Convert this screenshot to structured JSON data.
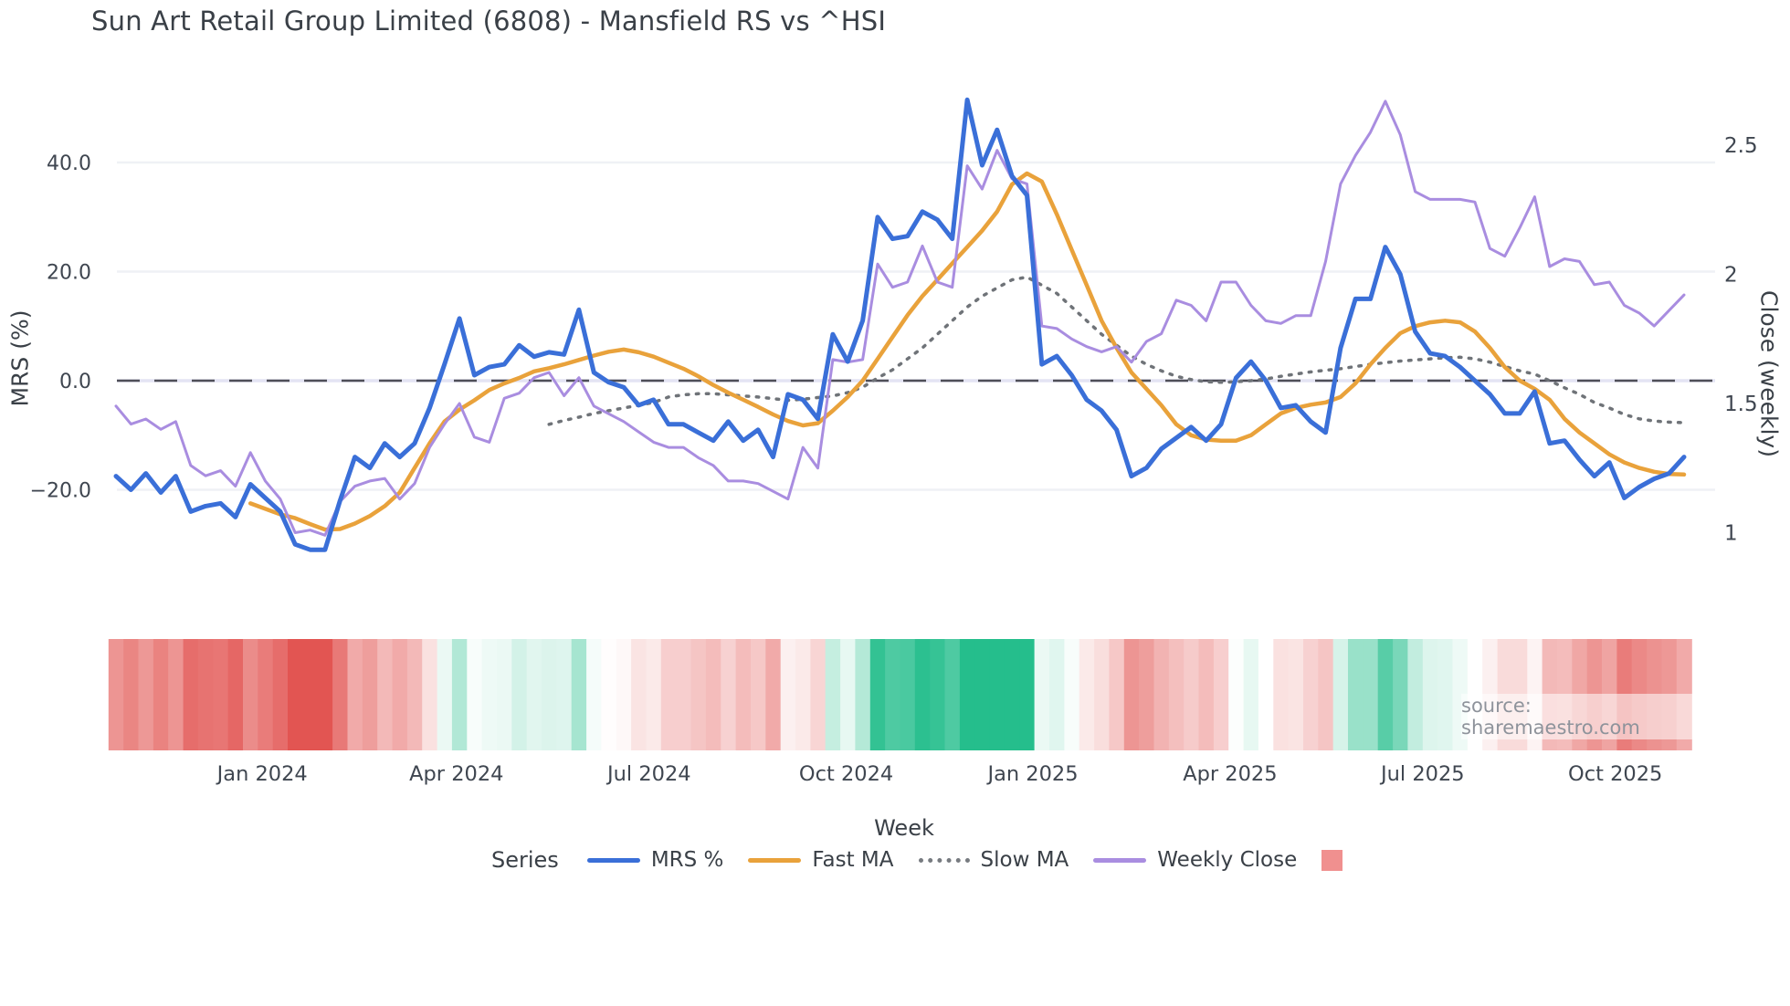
{
  "title": "Sun Art Retail Group Limited (6808) - Mansfield RS vs ^HSI",
  "source_text": "source: sharemaestro.com",
  "axes": {
    "left": {
      "label": "MRS (%)",
      "ticks": [
        {
          "v": 40,
          "label": "40.0"
        },
        {
          "v": 20,
          "label": "20.0"
        },
        {
          "v": 0,
          "label": "0.0"
        },
        {
          "v": -20,
          "label": "−20.0"
        }
      ]
    },
    "right": {
      "label": "Close (weekly)",
      "ticks": [
        {
          "v": 2.5,
          "label": "2.5"
        },
        {
          "v": 2,
          "label": "2"
        },
        {
          "v": 1.5,
          "label": "1.5"
        },
        {
          "v": 1,
          "label": "1"
        }
      ]
    },
    "x": {
      "label": "Week",
      "month_ticks": [
        {
          "label": "Jan 2024",
          "week": 9.8
        },
        {
          "label": "Apr 2024",
          "week": 22.8
        },
        {
          "label": "Jul 2024",
          "week": 35.7
        },
        {
          "label": "Oct 2024",
          "week": 48.9
        },
        {
          "label": "Jan 2025",
          "week": 61.4
        },
        {
          "label": "Apr 2025",
          "week": 74.6
        },
        {
          "label": "Jul 2025",
          "week": 87.5
        },
        {
          "label": "Oct 2025",
          "week": 100.4
        }
      ]
    }
  },
  "legend": {
    "title": "Series",
    "items": [
      {
        "label": "MRS %",
        "swatch": "line",
        "color": "#3A6FD8"
      },
      {
        "label": "Fast MA",
        "swatch": "line",
        "color": "#E9A23B"
      },
      {
        "label": "Slow MA",
        "swatch": "dotted",
        "color": "#777B80"
      },
      {
        "label": "Weekly Close",
        "swatch": "line",
        "color": "#A98DE0"
      },
      {
        "label": "",
        "swatch": "square",
        "color": "#F0908F"
      }
    ]
  },
  "chart_data": {
    "type": "line",
    "x_unit": "week_index",
    "n_weeks": 106,
    "ylim_left": [
      -35,
      55
    ],
    "ylim_right": [
      0.95,
      2.75
    ],
    "grid": "horizontal, left-axis ticks only",
    "zero_line": "dashed dark gray at MRS 0",
    "series": [
      {
        "name": "MRS %",
        "axis": "left",
        "color": "#3A6FD8",
        "style": "solid",
        "width": 5,
        "values": [
          -17.5,
          -20,
          -17,
          -20.5,
          -17.5,
          -24,
          -23,
          -22.5,
          -25,
          -19,
          -21.5,
          -24,
          -30,
          -31,
          -31,
          -22,
          -14,
          -16,
          -11.5,
          -14,
          -11.5,
          -5,
          3,
          11.4,
          1,
          2.5,
          3,
          6.5,
          4.4,
          5.2,
          4.8,
          13,
          1.5,
          -0.3,
          -1.2,
          -4.5,
          -3.5,
          -8,
          -8,
          -9.5,
          -11,
          -7.5,
          -11,
          -9,
          -14,
          -2.5,
          -3.5,
          -7,
          8.5,
          3.5,
          11,
          30,
          26,
          26.5,
          31,
          29.5,
          26,
          51.5,
          39.5,
          46,
          37.5,
          34,
          3,
          4.5,
          1,
          -3.5,
          -5.5,
          -9,
          -17.5,
          -16,
          -12.5,
          -10.5,
          -8.5,
          -11,
          -8,
          0.5,
          3.5,
          0,
          -5,
          -4.5,
          -7.5,
          -9.5,
          6,
          15,
          15,
          24.5,
          19.5,
          9,
          5,
          4.5,
          2.5,
          0,
          -2.5,
          -6,
          -6,
          -2,
          -11.5,
          -11,
          -14.5,
          -17.5,
          -15,
          -21.5,
          -19.5,
          -18,
          -17,
          -14
        ]
      },
      {
        "name": "Fast MA",
        "axis": "left",
        "color": "#E9A23B",
        "style": "solid",
        "width": 4.5,
        "values": [
          null,
          null,
          null,
          null,
          null,
          null,
          null,
          null,
          null,
          -22.5,
          -23.5,
          -24.5,
          -25.2,
          -26.3,
          -27.3,
          -27.2,
          -26.2,
          -24.8,
          -23,
          -20.5,
          -16,
          -11.5,
          -7.5,
          -5.3,
          -3.6,
          -1.7,
          -0.5,
          0.5,
          1.7,
          2.3,
          3.0,
          3.8,
          4.6,
          5.3,
          5.7,
          5.2,
          4.4,
          3.3,
          2.2,
          0.8,
          -0.8,
          -2.2,
          -3.5,
          -4.8,
          -6.2,
          -7.4,
          -8.2,
          -7.8,
          -5.5,
          -3,
          0,
          4,
          8,
          12,
          15.5,
          18.5,
          21.5,
          24.5,
          27.5,
          31,
          36,
          38,
          36.5,
          30.5,
          24,
          17.5,
          11,
          6,
          1.5,
          -1.5,
          -4.5,
          -8,
          -10,
          -10.8,
          -11,
          -11,
          -10,
          -8,
          -6,
          -5,
          -4.4,
          -4,
          -3,
          -0.5,
          3,
          6,
          8.7,
          10,
          10.7,
          11,
          10.7,
          9,
          6,
          2.5,
          0,
          -1.5,
          -3.5,
          -7,
          -9.5,
          -11.5,
          -13.5,
          -15,
          -16,
          -16.7,
          -17.1,
          -17.2
        ]
      },
      {
        "name": "Slow MA",
        "axis": "left",
        "color": "#6F7control3",
        "style": "dotted",
        "width": 3.5,
        "values": [
          null,
          null,
          null,
          null,
          null,
          null,
          null,
          null,
          null,
          null,
          null,
          null,
          null,
          null,
          null,
          null,
          null,
          null,
          null,
          null,
          null,
          null,
          null,
          null,
          null,
          null,
          null,
          null,
          null,
          -8,
          -7.3,
          -6.7,
          -6,
          -5.5,
          -5,
          -4.5,
          -4,
          -3,
          -2.6,
          -2.4,
          -2.4,
          -2.6,
          -2.8,
          -3.0,
          -3.3,
          -3.6,
          -3.4,
          -3.1,
          -2.8,
          -2.2,
          -1.2,
          0.5,
          2,
          4,
          6,
          8.5,
          11,
          13.5,
          15.5,
          17,
          18.5,
          19,
          17.5,
          16,
          13.5,
          11,
          8.5,
          6.5,
          4.5,
          3,
          1.8,
          0.8,
          0.2,
          -0.2,
          -0.3,
          -0.2,
          0,
          0.3,
          0.8,
          1.2,
          1.6,
          1.9,
          2.2,
          2.6,
          3.0,
          3.3,
          3.6,
          3.8,
          4.0,
          4.2,
          4.3,
          4.0,
          3.4,
          2.6,
          1.8,
          1.2,
          0,
          -1.3,
          -2.5,
          -4,
          -5,
          -6.2,
          -7,
          -7.4,
          -7.6,
          -7.7
        ]
      },
      {
        "name": "Weekly Close",
        "axis": "right",
        "color": "#A98DE0",
        "style": "solid",
        "width": 3,
        "values": [
          1.49,
          1.42,
          1.44,
          1.4,
          1.43,
          1.26,
          1.22,
          1.24,
          1.18,
          1.31,
          1.2,
          1.13,
          1.0,
          1.01,
          0.99,
          1.12,
          1.18,
          1.2,
          1.21,
          1.13,
          1.19,
          1.33,
          1.42,
          1.5,
          1.37,
          1.35,
          1.52,
          1.54,
          1.6,
          1.62,
          1.53,
          1.6,
          1.49,
          1.46,
          1.43,
          1.39,
          1.35,
          1.33,
          1.33,
          1.29,
          1.26,
          1.2,
          1.2,
          1.19,
          1.16,
          1.13,
          1.33,
          1.25,
          1.67,
          1.66,
          1.67,
          2.04,
          1.95,
          1.97,
          2.11,
          1.97,
          1.95,
          2.42,
          2.33,
          2.48,
          2.37,
          2.35,
          1.8,
          1.79,
          1.75,
          1.72,
          1.7,
          1.72,
          1.66,
          1.74,
          1.77,
          1.9,
          1.88,
          1.82,
          1.97,
          1.97,
          1.88,
          1.82,
          1.81,
          1.84,
          1.84,
          2.05,
          2.35,
          2.46,
          2.55,
          2.67,
          2.54,
          2.32,
          2.29,
          2.29,
          2.29,
          2.28,
          2.1,
          2.07,
          2.18,
          2.3,
          2.03,
          2.06,
          2.05,
          1.96,
          1.97,
          1.88,
          1.85,
          1.8,
          1.86,
          1.92
        ]
      }
    ],
    "heatmap_strip": {
      "description": "weekly cells colored by MRS % value, red negative to green positive",
      "source_series": "MRS %",
      "color_negative_max": "#E25552",
      "color_zero": "#FFFFFF",
      "color_positive_max": "#25BE8C",
      "negative_saturation_at": -28,
      "positive_saturation_at": 32
    }
  },
  "colors": {
    "grid": "#eff1f5",
    "zero_dash_dark": "#4f4f58",
    "zero_line_light": "#e4e4f3",
    "text_dark": "#3a4047",
    "tick_text": "#3f4650",
    "source_text": "#8e939b"
  }
}
